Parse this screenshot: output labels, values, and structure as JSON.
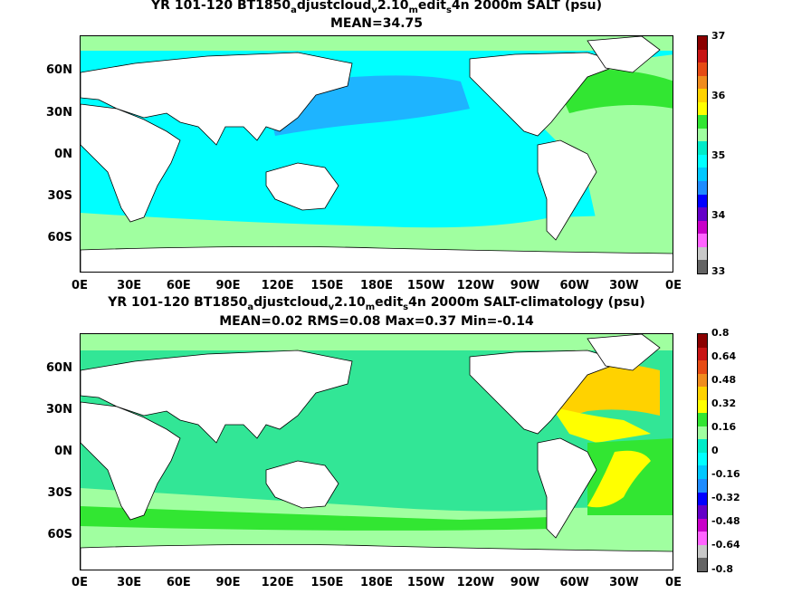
{
  "panels": [
    {
      "title_parts": [
        "YR 101-120 BT1850",
        "a",
        "djustcloud",
        "v",
        "2.10",
        "m",
        "edit",
        "s",
        "4n 2000m SALT (psu)"
      ],
      "stats": "MEAN=34.75",
      "colorbar_labels": [
        "37",
        "36",
        "35",
        "34",
        "33"
      ],
      "colorbar_colors": [
        "#8b0000",
        "#c81414",
        "#e64b14",
        "#f08c1e",
        "#ffd200",
        "#ffff00",
        "#32e632",
        "#a0ffa0",
        "#00ebc8",
        "#00ffff",
        "#00c8ff",
        "#1e8cff",
        "#0000ff",
        "#6400c8",
        "#c800c8",
        "#ff64ff",
        "#c8c8c8",
        "#646464"
      ],
      "ocean_color": "#00ffff",
      "land_color": "#ffffff"
    },
    {
      "title_parts": [
        "YR 101-120 BT1850",
        "a",
        "djustcloud",
        "v",
        "2.10",
        "m",
        "edit",
        "s",
        "4n 2000m SALT-climatology (psu)"
      ],
      "stats": "MEAN=0.02   RMS=0.08   Max=0.37   Min=-0.14",
      "colorbar_labels": [
        "0.8",
        "0.64",
        "0.48",
        "0.32",
        "0.16",
        "0",
        "-0.16",
        "-0.32",
        "-0.48",
        "-0.64",
        "-0.8"
      ],
      "colorbar_colors": [
        "#8b0000",
        "#c81414",
        "#e64b14",
        "#f08c1e",
        "#ffd200",
        "#ffff00",
        "#32e632",
        "#a0ffa0",
        "#00ebc8",
        "#00ffff",
        "#00c8ff",
        "#1e8cff",
        "#0000ff",
        "#6400c8",
        "#c800c8",
        "#ff64ff",
        "#c8c8c8",
        "#646464"
      ],
      "ocean_color": "#32e696",
      "land_color": "#ffffff"
    }
  ],
  "lat_labels": [
    "60N",
    "30N",
    "0N",
    "30S",
    "60S"
  ],
  "lon_labels": [
    "0E",
    "30E",
    "60E",
    "90E",
    "120E",
    "150E",
    "180E",
    "150W",
    "120W",
    "90W",
    "60W",
    "30W",
    "0E"
  ]
}
